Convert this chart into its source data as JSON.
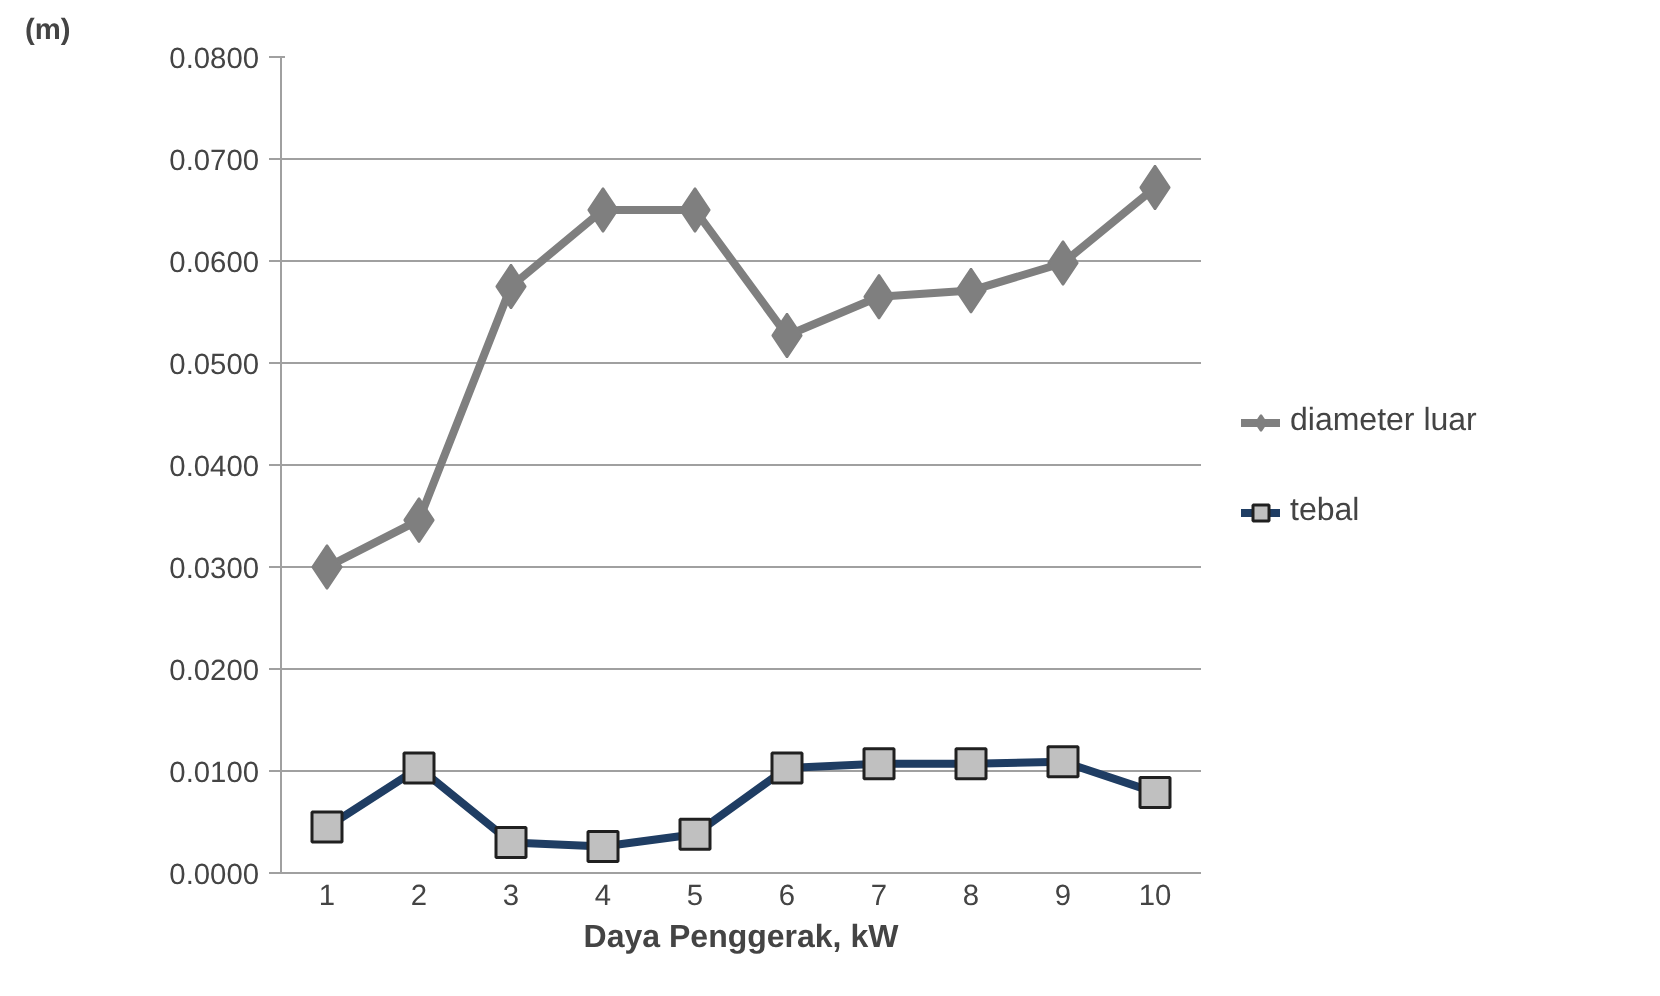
{
  "chart_data": {
    "type": "line",
    "xlabel": "Daya Penggerak, kW",
    "ylabel": "(m)",
    "categories": [
      "1",
      "2",
      "3",
      "4",
      "5",
      "6",
      "7",
      "8",
      "9",
      "10"
    ],
    "series": [
      {
        "name": "diameter luar",
        "color": "#7f7f7f",
        "marker": "diamond",
        "values": [
          0.03,
          0.0346,
          0.0575,
          0.065,
          0.065,
          0.0527,
          0.0565,
          0.0571,
          0.0598,
          0.0672
        ]
      },
      {
        "name": "tebal",
        "color": "#1f3d63",
        "marker": "square",
        "values": [
          0.0045,
          0.0103,
          0.003,
          0.0026,
          0.0038,
          0.0103,
          0.0107,
          0.0107,
          0.0109,
          0.0079
        ]
      }
    ],
    "ylim": [
      0,
      0.08
    ],
    "yticks": [
      {
        "value": 0,
        "label": "0.0000"
      },
      {
        "value": 0.01,
        "label": "0.0100"
      },
      {
        "value": 0.02,
        "label": "0.0200"
      },
      {
        "value": 0.03,
        "label": "0.0300"
      },
      {
        "value": 0.04,
        "label": "0.0400"
      },
      {
        "value": 0.05,
        "label": "0.0500"
      },
      {
        "value": 0.06,
        "label": "0.0600"
      },
      {
        "value": 0.07,
        "label": "0.0700"
      },
      {
        "value": 0.08,
        "label": "0.0800"
      }
    ],
    "grid": "y",
    "legend": "right"
  }
}
